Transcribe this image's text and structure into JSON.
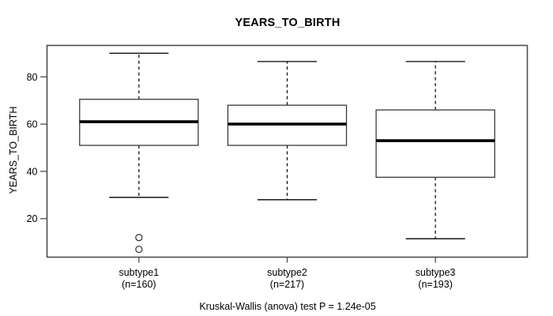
{
  "title": "YEARS_TO_BIRTH",
  "caption": "Kruskal-Wallis (anova) test P = 1.24e-05",
  "chart_data": {
    "type": "boxplot",
    "title": "YEARS_TO_BIRTH",
    "ylabel": "YEARS_TO_BIRTH",
    "xlabel": "",
    "y_ticks": [
      20,
      40,
      60,
      80
    ],
    "ylim": [
      3.7,
      93.3
    ],
    "grid": false,
    "annotation": "Kruskal-Wallis (anova) test P = 1.24e-05",
    "groups": [
      {
        "label": "subtype1",
        "sublabel": "(n=160)",
        "n": 160,
        "whisker_low": 29,
        "q1": 51,
        "median": 61,
        "q3": 70.5,
        "whisker_high": 90,
        "outliers": [
          12,
          7
        ]
      },
      {
        "label": "subtype2",
        "sublabel": "(n=217)",
        "n": 217,
        "whisker_low": 28,
        "q1": 51,
        "median": 60,
        "q3": 68,
        "whisker_high": 86.5,
        "outliers": []
      },
      {
        "label": "subtype3",
        "sublabel": "(n=193)",
        "n": 193,
        "whisker_low": 11.5,
        "q1": 37.5,
        "median": 53,
        "q3": 66,
        "whisker_high": 86.5,
        "outliers": []
      }
    ],
    "colors": {
      "line": "#000000",
      "frame": "#4d4d4d",
      "box_border": "#3a3a3a",
      "background": "#ffffff"
    }
  }
}
